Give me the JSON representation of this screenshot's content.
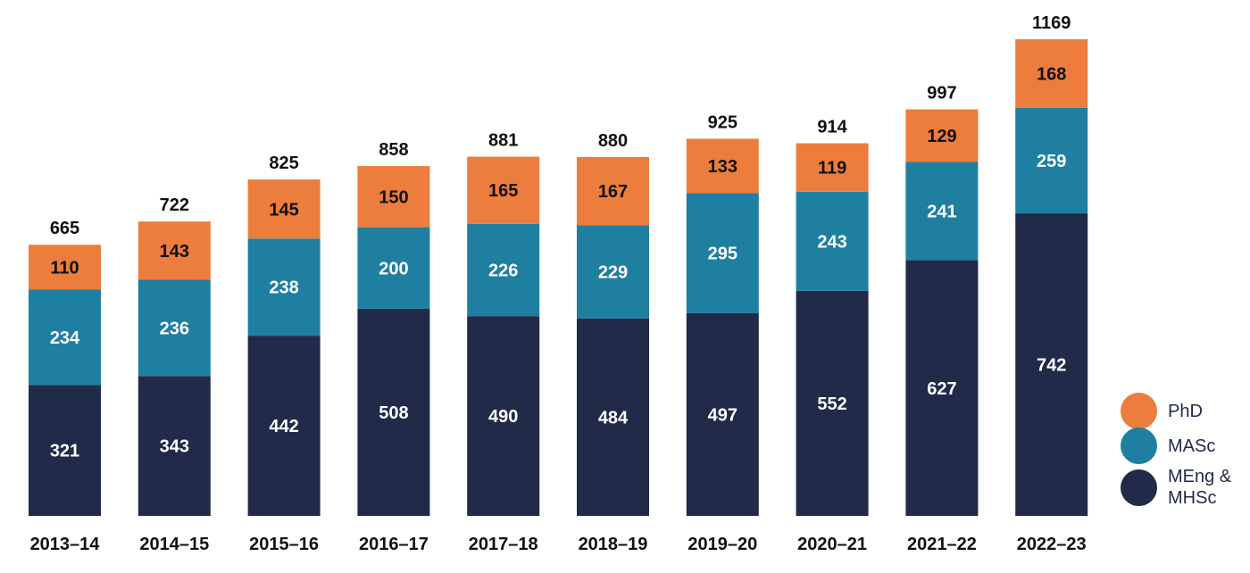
{
  "chart_data": {
    "type": "bar",
    "stacked": true,
    "categories": [
      "2013–14",
      "2014–15",
      "2015–16",
      "2016–17",
      "2017–18",
      "2018–19",
      "2019–20",
      "2020–21",
      "2021–22",
      "2022–23"
    ],
    "series": [
      {
        "name": "MEng & MHSc",
        "color": "#222a4a",
        "values": [
          321,
          343,
          442,
          508,
          490,
          484,
          497,
          552,
          627,
          742
        ]
      },
      {
        "name": "MASc",
        "color": "#1f7fa1",
        "values": [
          234,
          236,
          238,
          200,
          226,
          229,
          295,
          243,
          241,
          259
        ]
      },
      {
        "name": "PhD",
        "color": "#ec7d3c",
        "values": [
          110,
          143,
          145,
          150,
          165,
          167,
          133,
          119,
          129,
          168
        ]
      }
    ],
    "totals": [
      665,
      722,
      825,
      858,
      881,
      880,
      925,
      914,
      997,
      1169
    ],
    "ylim": [
      0,
      1169
    ],
    "grid": false,
    "legend_position": "bottom-right"
  },
  "legend": {
    "items": [
      {
        "label": "PhD",
        "color": "#ec7d3c"
      },
      {
        "label": "MASc",
        "color": "#1f7fa1"
      },
      {
        "label": "MEng &\nMHSc",
        "color": "#222a4a"
      }
    ]
  }
}
